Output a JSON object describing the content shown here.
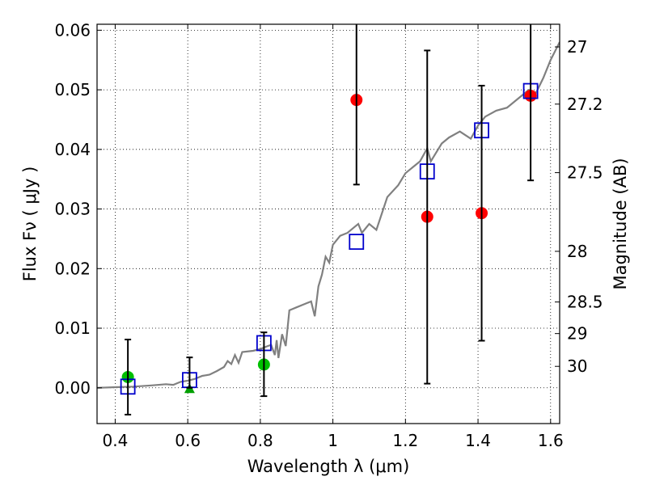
{
  "chart_data": {
    "type": "scatter",
    "xlabel": "Wavelength  λ (μm)",
    "ylabel": "Flux  Fν  ( μJy )",
    "ylabel_right": "Magnitude (AB)",
    "xlim": [
      0.35,
      1.625
    ],
    "ylim": [
      -0.006,
      0.061
    ],
    "grid": true,
    "x_ticks": [
      {
        "v": 0.4,
        "label": "0.4"
      },
      {
        "v": 0.6,
        "label": "0.6"
      },
      {
        "v": 0.8,
        "label": "0.8"
      },
      {
        "v": 1.0,
        "label": "1"
      },
      {
        "v": 1.2,
        "label": "1.2"
      },
      {
        "v": 1.4,
        "label": "1.4"
      },
      {
        "v": 1.6,
        "label": "1.6"
      }
    ],
    "y_ticks": [
      {
        "v": 0.0,
        "label": "0.00"
      },
      {
        "v": 0.01,
        "label": "0.01"
      },
      {
        "v": 0.02,
        "label": "0.02"
      },
      {
        "v": 0.03,
        "label": "0.03"
      },
      {
        "v": 0.04,
        "label": "0.04"
      },
      {
        "v": 0.05,
        "label": "0.05"
      },
      {
        "v": 0.06,
        "label": "0.06"
      }
    ],
    "mag_ticks": [
      {
        "flux": 0.0572,
        "label": "27"
      },
      {
        "flux": 0.0476,
        "label": "27.2"
      },
      {
        "flux": 0.0361,
        "label": "27.5"
      },
      {
        "flux": 0.0229,
        "label": "28"
      },
      {
        "flux": 0.0144,
        "label": "28.5"
      },
      {
        "flux": 0.0091,
        "label": "29"
      },
      {
        "flux": 0.0036,
        "label": "30"
      }
    ],
    "series": [
      {
        "style": "line",
        "color": "#808080",
        "points": [
          [
            0.35,
            0.0
          ],
          [
            0.4,
            0.0001
          ],
          [
            0.45,
            0.0002
          ],
          [
            0.5,
            0.0004
          ],
          [
            0.54,
            0.0006
          ],
          [
            0.56,
            0.0005
          ],
          [
            0.58,
            0.001
          ],
          [
            0.6,
            0.0012
          ],
          [
            0.62,
            0.0015
          ],
          [
            0.64,
            0.002
          ],
          [
            0.66,
            0.0022
          ],
          [
            0.68,
            0.0028
          ],
          [
            0.7,
            0.0035
          ],
          [
            0.71,
            0.0045
          ],
          [
            0.72,
            0.004
          ],
          [
            0.73,
            0.0055
          ],
          [
            0.74,
            0.0042
          ],
          [
            0.75,
            0.006
          ],
          [
            0.78,
            0.0062
          ],
          [
            0.8,
            0.0065
          ],
          [
            0.82,
            0.007
          ],
          [
            0.83,
            0.0072
          ],
          [
            0.84,
            0.0055
          ],
          [
            0.845,
            0.008
          ],
          [
            0.85,
            0.005
          ],
          [
            0.86,
            0.009
          ],
          [
            0.87,
            0.007
          ],
          [
            0.88,
            0.013
          ],
          [
            0.9,
            0.0135
          ],
          [
            0.92,
            0.014
          ],
          [
            0.94,
            0.0145
          ],
          [
            0.95,
            0.012
          ],
          [
            0.96,
            0.017
          ],
          [
            0.97,
            0.019
          ],
          [
            0.98,
            0.022
          ],
          [
            0.99,
            0.021
          ],
          [
            1.0,
            0.024
          ],
          [
            1.02,
            0.0255
          ],
          [
            1.04,
            0.026
          ],
          [
            1.06,
            0.027
          ],
          [
            1.07,
            0.0275
          ],
          [
            1.08,
            0.026
          ],
          [
            1.1,
            0.0275
          ],
          [
            1.12,
            0.0265
          ],
          [
            1.15,
            0.032
          ],
          [
            1.18,
            0.034
          ],
          [
            1.2,
            0.036
          ],
          [
            1.24,
            0.038
          ],
          [
            1.26,
            0.0402
          ],
          [
            1.27,
            0.038
          ],
          [
            1.28,
            0.039
          ],
          [
            1.3,
            0.041
          ],
          [
            1.32,
            0.042
          ],
          [
            1.35,
            0.043
          ],
          [
            1.38,
            0.0418
          ],
          [
            1.4,
            0.044
          ],
          [
            1.42,
            0.0455
          ],
          [
            1.45,
            0.0465
          ],
          [
            1.48,
            0.047
          ],
          [
            1.5,
            0.048
          ],
          [
            1.52,
            0.049
          ],
          [
            1.54,
            0.05
          ],
          [
            1.56,
            0.0495
          ],
          [
            1.58,
            0.052
          ],
          [
            1.6,
            0.055
          ],
          [
            1.625,
            0.058
          ]
        ]
      },
      {
        "style": "circle",
        "color": "#ff0000",
        "points": [
          [
            1.065,
            0.0483
          ],
          [
            1.26,
            0.0287
          ],
          [
            1.41,
            0.0293
          ],
          [
            1.545,
            0.049
          ]
        ]
      },
      {
        "style": "circle",
        "color": "#00c000",
        "points": [
          [
            0.435,
            0.0018
          ],
          [
            0.81,
            0.0039
          ]
        ]
      },
      {
        "style": "triangle",
        "color": "#00a000",
        "points": [
          [
            0.605,
            -0.0002
          ]
        ]
      },
      {
        "style": "square",
        "color": "#0000cc",
        "points": [
          [
            0.435,
            0.0002
          ],
          [
            0.605,
            0.0013
          ],
          [
            0.81,
            0.0075
          ],
          [
            1.065,
            0.0245
          ],
          [
            1.26,
            0.0363
          ],
          [
            1.41,
            0.0432
          ],
          [
            1.545,
            0.0498
          ]
        ]
      }
    ],
    "errorbars": [
      {
        "x": 0.435,
        "y0": -0.0045,
        "y1": 0.0081
      },
      {
        "x": 0.605,
        "y0": 0.0,
        "y1": 0.0051
      },
      {
        "x": 0.81,
        "y0": -0.0014,
        "y1": 0.0093
      },
      {
        "x": 1.065,
        "y0": 0.0341,
        "y1": 0.061
      },
      {
        "x": 1.26,
        "y0": 0.0007,
        "y1": 0.0566
      },
      {
        "x": 1.41,
        "y0": 0.0079,
        "y1": 0.0507
      },
      {
        "x": 1.545,
        "y0": 0.0348,
        "y1": 0.061
      }
    ]
  }
}
